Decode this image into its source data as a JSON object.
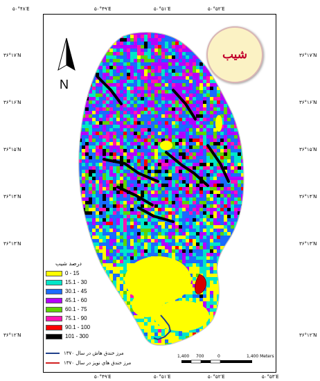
{
  "map": {
    "title": "شیب",
    "north_label": "N",
    "top_ticks": [
      "۵۰°۴۸′E",
      "۵۰°۴۹′E",
      "۵۰°۵۱′E",
      "۵۰°۵۲′E"
    ],
    "bottom_ticks": [
      "۵۰°۴۹′E",
      "۵۰°۵۱′E",
      "۵۰°۵۲′E",
      "۵۰°۵۳′E"
    ],
    "left_ticks": [
      "۳۶°۱۷′N",
      "۳۶°۱۶′N",
      "۳۶°۱۵′N",
      "۳۶°۱۴′N",
      "۳۶°۱۳′N",
      "۳۶°۱۲′N"
    ],
    "right_ticks": [
      "۳۶°۱۷′N",
      "۳۶°۱۶′N",
      "۳۶°۱۵′N",
      "۳۶°۱۴′N",
      "۳۶°۱۳′N",
      "۳۶°۱۲′N"
    ]
  },
  "legend": {
    "title": "درصد شیب",
    "classes": [
      {
        "label": "0 - 15",
        "color": "#ffff00"
      },
      {
        "label": "15.1 - 30",
        "color": "#00e6c8"
      },
      {
        "label": "30.1 - 45",
        "color": "#1a6bff"
      },
      {
        "label": "45.1 - 60",
        "color": "#b400ff"
      },
      {
        "label": "60.1 - 75",
        "color": "#5fd400"
      },
      {
        "label": "75.1 - 90",
        "color": "#ff14b4"
      },
      {
        "label": "90.1 - 100",
        "color": "#ff0000"
      },
      {
        "label": "101 - 300",
        "color": "#000000"
      }
    ],
    "lines": [
      {
        "label": "مرز خندق هاش در سال ۱۳۷۰",
        "color": "#1f3f8a"
      },
      {
        "label": "مرز خندق هاي نوپز در سال ۱۳۷۰",
        "color": "#d22020"
      }
    ]
  },
  "scale_bar": {
    "labels": [
      "1,400",
      "700",
      "0",
      "1,400 Meters"
    ]
  }
}
